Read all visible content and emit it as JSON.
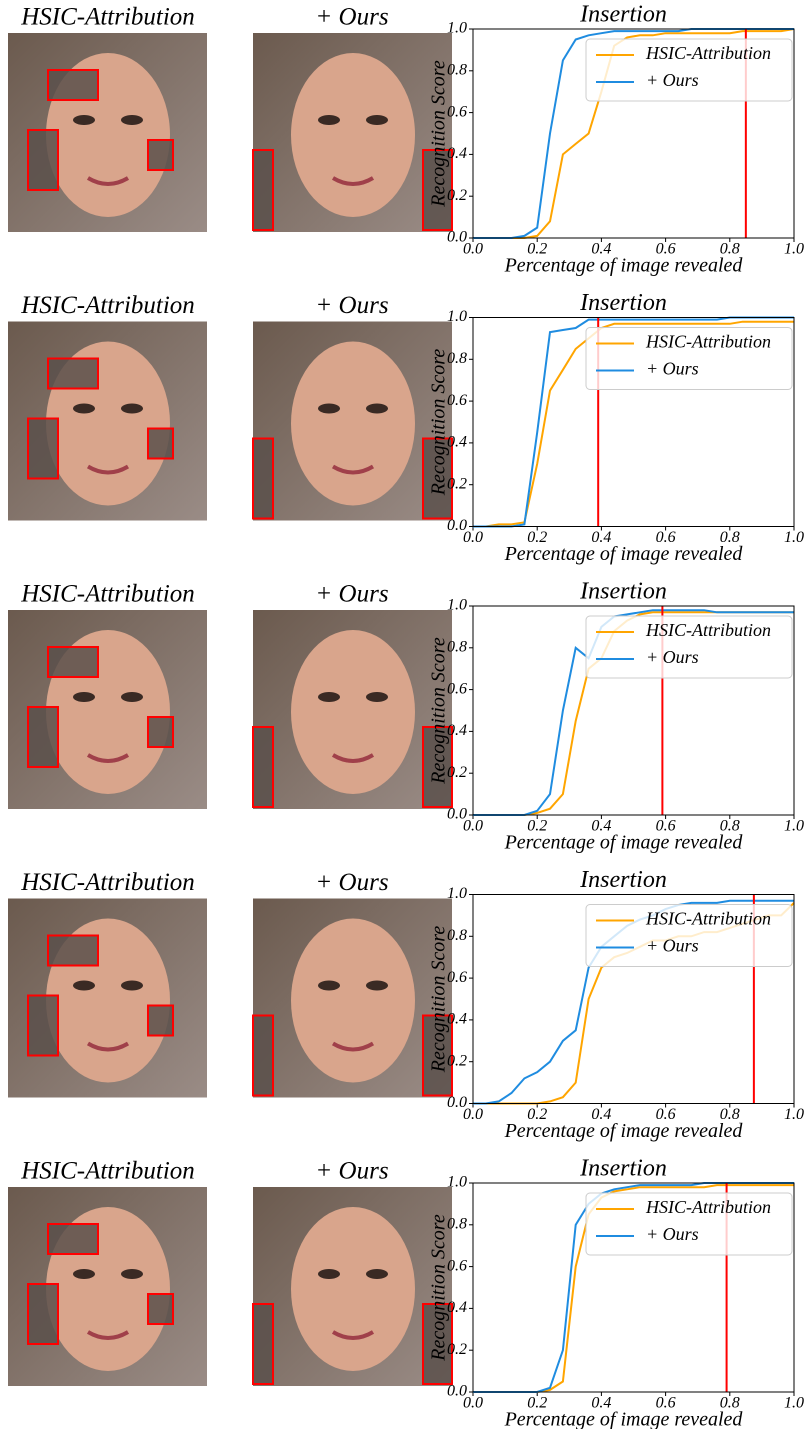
{
  "panels": [
    {
      "left_title": "HSIC-Attribution",
      "right_title": "+ Ours"
    },
    {
      "left_title": "HSIC-Attribution",
      "right_title": "+ Ours"
    },
    {
      "left_title": "HSIC-Attribution",
      "right_title": "+ Ours"
    },
    {
      "left_title": "HSIC-Attribution",
      "right_title": "+ Ours"
    },
    {
      "left_title": "HSIC-Attribution",
      "right_title": "+ Ours"
    }
  ],
  "chart_data": [
    {
      "type": "line",
      "title": "Insertion",
      "x_label": "Percentage of image revealed",
      "y_label": "Recognition Score",
      "x": [
        0,
        0.04,
        0.08,
        0.12,
        0.16,
        0.2,
        0.24,
        0.28,
        0.32,
        0.36,
        0.4,
        0.44,
        0.48,
        0.52,
        0.56,
        0.6,
        0.64,
        0.68,
        0.72,
        0.76,
        0.8,
        0.84,
        0.88,
        0.92,
        0.96,
        1.0
      ],
      "xlim": [
        0,
        1
      ],
      "ylim": [
        0,
        1
      ],
      "xticks": [
        {
          "value": 0,
          "label": "0.0"
        },
        {
          "value": 0.2,
          "label": "0.2"
        },
        {
          "value": 0.4,
          "label": "0.4"
        },
        {
          "value": 0.6,
          "label": "0.6"
        },
        {
          "value": 0.8,
          "label": "0.8"
        },
        {
          "value": 1,
          "label": "1.0"
        }
      ],
      "yticks": [
        {
          "value": 0,
          "label": "0.0"
        },
        {
          "value": 0.2,
          "label": "0.2"
        },
        {
          "value": 0.4,
          "label": "0.4"
        },
        {
          "value": 0.6,
          "label": "0.6"
        },
        {
          "value": 0.8,
          "label": "0.8"
        },
        {
          "value": 1,
          "label": "1.0"
        }
      ],
      "vline": 0.85,
      "vline_color": "#ff0000",
      "legend": "upper right",
      "series": [
        {
          "name": "HSIC-Attribution",
          "color": "#ffa500",
          "values": [
            0,
            0,
            0,
            0,
            0,
            0.01,
            0.08,
            0.4,
            0.45,
            0.5,
            0.7,
            0.92,
            0.96,
            0.97,
            0.97,
            0.98,
            0.98,
            0.98,
            0.98,
            0.98,
            0.98,
            0.99,
            0.99,
            0.99,
            0.99,
            1.0
          ]
        },
        {
          "name": "+ Ours",
          "color": "#1f8ce0",
          "values": [
            0,
            0,
            0,
            0,
            0.01,
            0.05,
            0.5,
            0.85,
            0.95,
            0.97,
            0.98,
            0.99,
            0.99,
            0.99,
            0.99,
            0.99,
            0.99,
            1,
            1,
            1,
            1,
            1,
            1,
            1,
            1,
            1
          ]
        }
      ]
    },
    {
      "type": "line",
      "title": "Insertion",
      "x_label": "Percentage of image revealed",
      "y_label": "Recognition Score",
      "x": [
        0,
        0.04,
        0.08,
        0.12,
        0.16,
        0.2,
        0.24,
        0.28,
        0.32,
        0.36,
        0.4,
        0.44,
        0.48,
        0.52,
        0.56,
        0.6,
        0.64,
        0.68,
        0.72,
        0.76,
        0.8,
        0.84,
        0.88,
        0.92,
        0.96,
        1.0
      ],
      "xlim": [
        0,
        1
      ],
      "ylim": [
        0,
        1
      ],
      "xticks": [
        {
          "value": 0,
          "label": "0.0"
        },
        {
          "value": 0.2,
          "label": "0.2"
        },
        {
          "value": 0.4,
          "label": "0.4"
        },
        {
          "value": 0.6,
          "label": "0.6"
        },
        {
          "value": 0.8,
          "label": "0.8"
        },
        {
          "value": 1,
          "label": "1.0"
        }
      ],
      "yticks": [
        {
          "value": 0,
          "label": "0.0"
        },
        {
          "value": 0.2,
          "label": "0.2"
        },
        {
          "value": 0.4,
          "label": "0.4"
        },
        {
          "value": 0.6,
          "label": "0.6"
        },
        {
          "value": 0.8,
          "label": "0.8"
        },
        {
          "value": 1,
          "label": "1.0"
        }
      ],
      "vline": 0.39,
      "vline_color": "#ff0000",
      "legend": "upper right",
      "series": [
        {
          "name": "HSIC-Attribution",
          "color": "#ffa500",
          "values": [
            0,
            0,
            0.01,
            0.01,
            0.02,
            0.3,
            0.65,
            0.75,
            0.85,
            0.9,
            0.95,
            0.97,
            0.97,
            0.97,
            0.97,
            0.97,
            0.97,
            0.97,
            0.97,
            0.97,
            0.97,
            0.98,
            0.98,
            0.98,
            0.98,
            0.98
          ]
        },
        {
          "name": "+ Ours",
          "color": "#1f8ce0",
          "values": [
            0,
            0,
            0,
            0,
            0.01,
            0.45,
            0.93,
            0.94,
            0.95,
            0.99,
            0.99,
            0.99,
            0.99,
            0.99,
            0.99,
            0.99,
            0.99,
            0.99,
            0.99,
            0.99,
            1,
            1,
            1,
            1,
            1,
            1
          ]
        }
      ]
    },
    {
      "type": "line",
      "title": "Insertion",
      "x_label": "Percentage of image revealed",
      "y_label": "Recognition Score",
      "x": [
        0,
        0.04,
        0.08,
        0.12,
        0.16,
        0.2,
        0.24,
        0.28,
        0.32,
        0.36,
        0.4,
        0.44,
        0.48,
        0.52,
        0.56,
        0.6,
        0.64,
        0.68,
        0.72,
        0.76,
        0.8,
        0.84,
        0.88,
        0.92,
        0.96,
        1.0
      ],
      "xlim": [
        0,
        1
      ],
      "ylim": [
        0,
        1
      ],
      "xticks": [
        {
          "value": 0,
          "label": "0.0"
        },
        {
          "value": 0.2,
          "label": "0.2"
        },
        {
          "value": 0.4,
          "label": "0.4"
        },
        {
          "value": 0.6,
          "label": "0.6"
        },
        {
          "value": 0.8,
          "label": "0.8"
        },
        {
          "value": 1,
          "label": "1.0"
        }
      ],
      "yticks": [
        {
          "value": 0,
          "label": "0.0"
        },
        {
          "value": 0.2,
          "label": "0.2"
        },
        {
          "value": 0.4,
          "label": "0.4"
        },
        {
          "value": 0.6,
          "label": "0.6"
        },
        {
          "value": 0.8,
          "label": "0.8"
        },
        {
          "value": 1,
          "label": "1.0"
        }
      ],
      "vline": 0.59,
      "vline_color": "#ff0000",
      "legend": "upper right",
      "series": [
        {
          "name": "HSIC-Attribution",
          "color": "#ffa500",
          "values": [
            0,
            0,
            0,
            0,
            0,
            0.01,
            0.03,
            0.1,
            0.45,
            0.7,
            0.75,
            0.88,
            0.93,
            0.96,
            0.97,
            0.97,
            0.97,
            0.97,
            0.97,
            0.97,
            0.97,
            0.97,
            0.97,
            0.97,
            0.97,
            0.97
          ]
        },
        {
          "name": "+ Ours",
          "color": "#1f8ce0",
          "values": [
            0,
            0,
            0,
            0,
            0,
            0.02,
            0.1,
            0.5,
            0.8,
            0.75,
            0.9,
            0.95,
            0.96,
            0.97,
            0.98,
            0.98,
            0.98,
            0.98,
            0.98,
            0.97,
            0.97,
            0.97,
            0.97,
            0.97,
            0.97,
            0.97
          ]
        }
      ]
    },
    {
      "type": "line",
      "title": "Insertion",
      "x_label": "Percentage of image revealed",
      "y_label": "Recognition Score",
      "x": [
        0,
        0.04,
        0.08,
        0.12,
        0.16,
        0.2,
        0.24,
        0.28,
        0.32,
        0.36,
        0.4,
        0.44,
        0.48,
        0.52,
        0.56,
        0.6,
        0.64,
        0.68,
        0.72,
        0.76,
        0.8,
        0.84,
        0.88,
        0.92,
        0.96,
        1.0
      ],
      "xlim": [
        0,
        1
      ],
      "ylim": [
        0,
        1
      ],
      "xticks": [
        {
          "value": 0,
          "label": "0.0"
        },
        {
          "value": 0.2,
          "label": "0.2"
        },
        {
          "value": 0.4,
          "label": "0.4"
        },
        {
          "value": 0.6,
          "label": "0.6"
        },
        {
          "value": 0.8,
          "label": "0.8"
        },
        {
          "value": 1,
          "label": "1.0"
        }
      ],
      "yticks": [
        {
          "value": 0,
          "label": "0.0"
        },
        {
          "value": 0.2,
          "label": "0.2"
        },
        {
          "value": 0.4,
          "label": "0.4"
        },
        {
          "value": 0.6,
          "label": "0.6"
        },
        {
          "value": 0.8,
          "label": "0.8"
        },
        {
          "value": 1,
          "label": "1.0"
        }
      ],
      "vline": 0.875,
      "vline_color": "#ff0000",
      "legend": "upper right",
      "series": [
        {
          "name": "HSIC-Attribution",
          "color": "#ffa500",
          "values": [
            0,
            0,
            0,
            0,
            0,
            0,
            0.01,
            0.03,
            0.1,
            0.5,
            0.65,
            0.7,
            0.72,
            0.75,
            0.78,
            0.78,
            0.8,
            0.8,
            0.82,
            0.82,
            0.84,
            0.86,
            0.88,
            0.9,
            0.9,
            0.96
          ]
        },
        {
          "name": "+ Ours",
          "color": "#1f8ce0",
          "values": [
            0,
            0,
            0.01,
            0.05,
            0.12,
            0.15,
            0.2,
            0.3,
            0.35,
            0.65,
            0.75,
            0.8,
            0.85,
            0.88,
            0.9,
            0.93,
            0.95,
            0.96,
            0.96,
            0.96,
            0.97,
            0.97,
            0.97,
            0.97,
            0.97,
            0.97
          ]
        }
      ]
    },
    {
      "type": "line",
      "title": "Insertion",
      "x_label": "Percentage of image revealed",
      "y_label": "Recognition Score",
      "x": [
        0,
        0.04,
        0.08,
        0.12,
        0.16,
        0.2,
        0.24,
        0.28,
        0.32,
        0.36,
        0.4,
        0.44,
        0.48,
        0.52,
        0.56,
        0.6,
        0.64,
        0.68,
        0.72,
        0.76,
        0.8,
        0.84,
        0.88,
        0.92,
        0.96,
        1.0
      ],
      "xlim": [
        0,
        1
      ],
      "ylim": [
        0,
        1
      ],
      "xticks": [
        {
          "value": 0,
          "label": "0.0"
        },
        {
          "value": 0.2,
          "label": "0.2"
        },
        {
          "value": 0.4,
          "label": "0.4"
        },
        {
          "value": 0.6,
          "label": "0.6"
        },
        {
          "value": 0.8,
          "label": "0.8"
        },
        {
          "value": 1,
          "label": "1.0"
        }
      ],
      "yticks": [
        {
          "value": 0,
          "label": "0.0"
        },
        {
          "value": 0.2,
          "label": "0.2"
        },
        {
          "value": 0.4,
          "label": "0.4"
        },
        {
          "value": 0.6,
          "label": "0.6"
        },
        {
          "value": 0.8,
          "label": "0.8"
        },
        {
          "value": 1,
          "label": "1.0"
        }
      ],
      "vline": 0.79,
      "vline_color": "#ff0000",
      "legend": "upper right",
      "series": [
        {
          "name": "HSIC-Attribution",
          "color": "#ffa500",
          "values": [
            0,
            0,
            0,
            0,
            0,
            0,
            0.01,
            0.05,
            0.6,
            0.85,
            0.93,
            0.96,
            0.97,
            0.98,
            0.98,
            0.98,
            0.98,
            0.98,
            0.98,
            0.99,
            0.99,
            0.99,
            0.99,
            0.99,
            0.99,
            0.99
          ]
        },
        {
          "name": "+ Ours",
          "color": "#1f8ce0",
          "values": [
            0,
            0,
            0,
            0,
            0,
            0,
            0.02,
            0.2,
            0.8,
            0.9,
            0.95,
            0.97,
            0.98,
            0.99,
            0.99,
            0.99,
            0.99,
            0.99,
            1,
            1,
            1,
            1,
            1,
            1,
            1,
            1
          ]
        }
      ]
    }
  ]
}
